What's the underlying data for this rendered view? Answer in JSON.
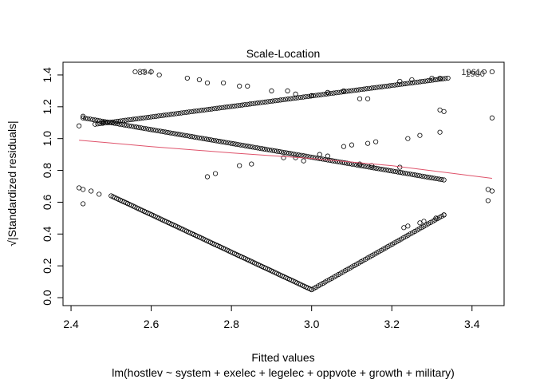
{
  "chart_data": {
    "type": "scatter",
    "title": "Scale-Location",
    "xlabel": "Fitted values",
    "sublabel": "lm(hostlev ~ system + exelec + legelec + oppvote + growth + military)",
    "ylabel": "√|Standardized residuals|",
    "xlim": [
      2.38,
      3.48
    ],
    "ylim": [
      -0.05,
      1.48
    ],
    "x_ticks": [
      "2.4",
      "2.6",
      "2.8",
      "3.0",
      "3.2",
      "3.4"
    ],
    "y_ticks": [
      "0.0",
      "0.2",
      "0.4",
      "0.6",
      "0.8",
      "1.0",
      "1.2",
      "1.4"
    ],
    "grid": false,
    "point_style": "open-circle",
    "point_color": "#000000",
    "smooth_color": "#DF536B",
    "clusters": [
      {
        "name": "upper-rising",
        "x_from": 2.46,
        "x_to": 3.34,
        "y_from": 1.09,
        "y_to": 1.38,
        "count": 140
      },
      {
        "name": "upper-falling",
        "x_from": 2.43,
        "x_to": 3.33,
        "y_from": 1.13,
        "y_to": 0.74,
        "count": 150
      },
      {
        "name": "lower-falling",
        "x_from": 2.5,
        "x_to": 3.0,
        "y_from": 0.64,
        "y_to": 0.05,
        "count": 110
      },
      {
        "name": "lower-rising",
        "x_from": 3.0,
        "x_to": 3.33,
        "y_from": 0.05,
        "y_to": 0.52,
        "count": 60
      }
    ],
    "extra_points": [
      {
        "x": 2.42,
        "y": 1.08
      },
      {
        "x": 2.43,
        "y": 1.14
      },
      {
        "x": 2.42,
        "y": 0.69
      },
      {
        "x": 2.43,
        "y": 0.68
      },
      {
        "x": 2.43,
        "y": 0.59
      },
      {
        "x": 2.45,
        "y": 0.67
      },
      {
        "x": 2.47,
        "y": 0.65
      },
      {
        "x": 2.48,
        "y": 1.1
      },
      {
        "x": 2.56,
        "y": 1.42
      },
      {
        "x": 2.58,
        "y": 1.42
      },
      {
        "x": 2.6,
        "y": 1.42
      },
      {
        "x": 2.62,
        "y": 1.4
      },
      {
        "x": 2.69,
        "y": 1.38
      },
      {
        "x": 2.72,
        "y": 1.37
      },
      {
        "x": 2.74,
        "y": 1.35
      },
      {
        "x": 2.78,
        "y": 1.35
      },
      {
        "x": 2.82,
        "y": 1.33
      },
      {
        "x": 2.84,
        "y": 1.33
      },
      {
        "x": 2.9,
        "y": 1.3
      },
      {
        "x": 2.94,
        "y": 1.3
      },
      {
        "x": 2.96,
        "y": 1.28
      },
      {
        "x": 3.0,
        "y": 1.27
      },
      {
        "x": 3.04,
        "y": 1.29
      },
      {
        "x": 3.08,
        "y": 1.3
      },
      {
        "x": 3.12,
        "y": 1.25
      },
      {
        "x": 3.14,
        "y": 1.25
      },
      {
        "x": 2.76,
        "y": 0.78
      },
      {
        "x": 2.74,
        "y": 0.76
      },
      {
        "x": 2.82,
        "y": 0.83
      },
      {
        "x": 2.85,
        "y": 0.84
      },
      {
        "x": 2.93,
        "y": 0.88
      },
      {
        "x": 2.96,
        "y": 0.88
      },
      {
        "x": 2.98,
        "y": 0.86
      },
      {
        "x": 3.02,
        "y": 0.9
      },
      {
        "x": 3.04,
        "y": 0.89
      },
      {
        "x": 3.08,
        "y": 0.95
      },
      {
        "x": 3.1,
        "y": 0.96
      },
      {
        "x": 3.14,
        "y": 0.97
      },
      {
        "x": 3.16,
        "y": 0.98
      },
      {
        "x": 3.24,
        "y": 1.0
      },
      {
        "x": 3.27,
        "y": 1.02
      },
      {
        "x": 3.32,
        "y": 1.04
      },
      {
        "x": 3.33,
        "y": 1.17
      },
      {
        "x": 3.32,
        "y": 1.18
      },
      {
        "x": 3.45,
        "y": 1.13
      },
      {
        "x": 3.45,
        "y": 0.67
      },
      {
        "x": 3.44,
        "y": 0.68
      },
      {
        "x": 3.44,
        "y": 0.61
      },
      {
        "x": 3.22,
        "y": 1.36
      },
      {
        "x": 3.25,
        "y": 1.37
      },
      {
        "x": 3.3,
        "y": 1.38
      },
      {
        "x": 3.32,
        "y": 1.38
      },
      {
        "x": 3.43,
        "y": 1.42
      },
      {
        "x": 3.45,
        "y": 1.42
      },
      {
        "x": 3.23,
        "y": 0.44
      },
      {
        "x": 3.24,
        "y": 0.45
      },
      {
        "x": 3.27,
        "y": 0.47
      },
      {
        "x": 3.28,
        "y": 0.48
      },
      {
        "x": 3.31,
        "y": 0.5
      },
      {
        "x": 3.33,
        "y": 0.52
      },
      {
        "x": 3.12,
        "y": 0.84
      },
      {
        "x": 3.15,
        "y": 0.83
      },
      {
        "x": 3.22,
        "y": 0.82
      }
    ],
    "labeled_points": [
      {
        "label": "894",
        "x": 2.56,
        "y": 1.42
      },
      {
        "label": "1961",
        "x": 3.43,
        "y": 1.42
      },
      {
        "label": "1980",
        "x": 3.44,
        "y": 1.41
      }
    ],
    "smooth_line": {
      "x": [
        2.42,
        2.6,
        2.8,
        3.0,
        3.2,
        3.45
      ],
      "y": [
        0.99,
        0.95,
        0.91,
        0.875,
        0.83,
        0.75
      ]
    }
  }
}
